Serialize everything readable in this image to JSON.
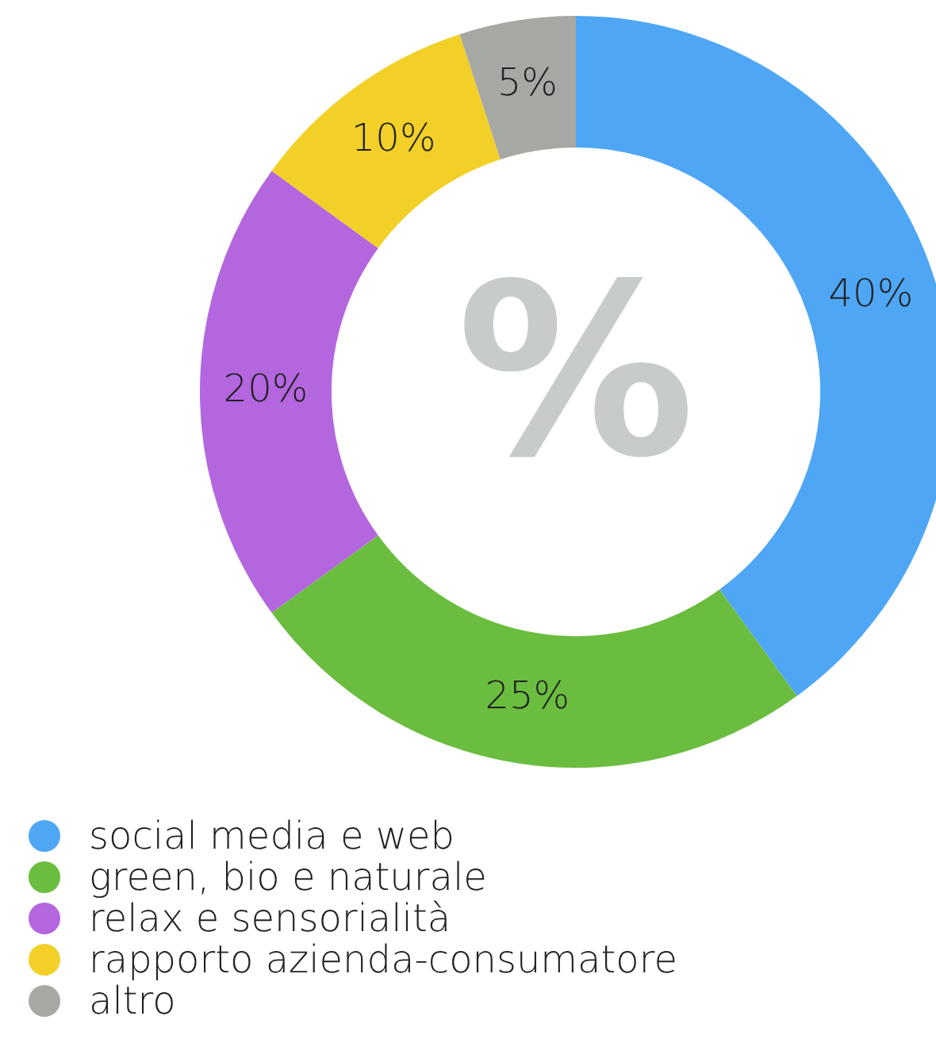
{
  "chart_data": {
    "type": "donut",
    "categories": [
      "social media e web",
      "green, bio e naturale",
      "relax e sensorialità",
      "rapporto azienda-consumatore",
      "altro"
    ],
    "values": [
      40,
      25,
      20,
      10,
      5
    ],
    "colors": [
      "#4fa6f5",
      "#6bbd3f",
      "#b366de",
      "#f2d028",
      "#a6a8a3"
    ],
    "value_labels": [
      "40%",
      "25%",
      "20%",
      "10%",
      "5%"
    ],
    "legend": "bottom",
    "annotations": [
      "%"
    ]
  }
}
